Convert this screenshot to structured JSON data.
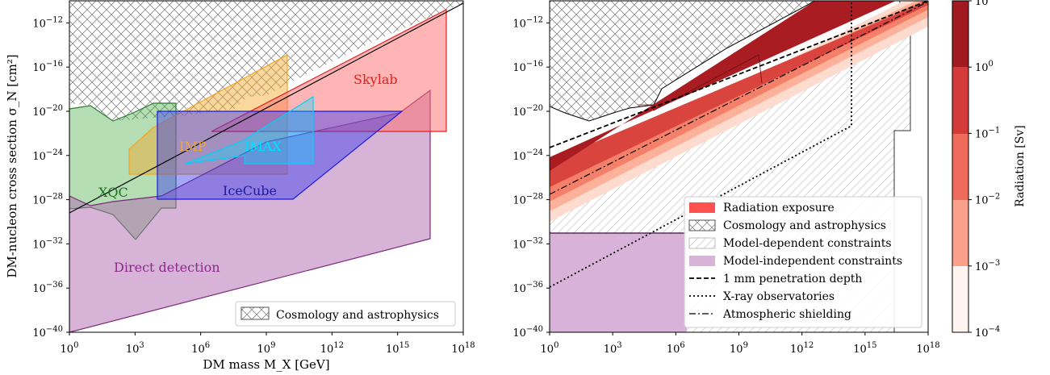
{
  "figure": {
    "ylabel": "DM-nucleon cross section σ_N [cm²]",
    "xlabel": "DM mass M_X [GeV]",
    "colorbar_label": "Radiation [Sv]"
  },
  "chart_data": [
    {
      "type": "area",
      "panel": "left",
      "xscale": "log",
      "yscale": "log",
      "xlim": [
        1,
        1e+18
      ],
      "ylim": [
        1e-40,
        1e-10
      ],
      "x_ticks": [
        "10^0",
        "10^3",
        "10^6",
        "10^9",
        "10^12",
        "10^15",
        "10^18"
      ],
      "y_ticks": [
        "10^-12",
        "10^-16",
        "10^-20",
        "10^-24",
        "10^-28",
        "10^-32",
        "10^-36",
        "10^-40"
      ],
      "xlabel": "DM mass M_X [GeV]",
      "ylabel": "DM-nucleon cross section σ_N [cm²]",
      "legend": {
        "placement": "lower-right",
        "entries": [
          "Cosmology and astrophysics"
        ]
      },
      "regions": [
        {
          "name": "Cosmology and astrophysics",
          "style": "crosshatch",
          "boundary": [
            [
              1,
              1.6e-19
            ],
            [
              10,
              4e-20
            ],
            [
              100,
              4e-21
            ],
            [
              1000,
              2.5e-21
            ],
            [
              10000.0,
              1.6e-20
            ],
            [
              100000.0,
              1e-19
            ],
            [
              1000000.0,
              4e-21
            ],
            [
              10000000.0,
              5e-19
            ],
            [
              100000000.0,
              2.5e-20
            ],
            [
              1000000000.0,
              4e-19
            ],
            [
              10000000000.0,
              6e-21
            ],
            [
              10000000000000.0,
              5e-17
            ],
            [
              1e+16,
              4e-13
            ],
            [
              1e+18,
              1e-10
            ]
          ]
        },
        {
          "name": "XQC",
          "label": "XQC",
          "color": "#2e8b2e",
          "polygon": [
            [
              1,
              1.6e-28
            ],
            [
              0.3,
              3e-21
            ],
            [
              100.0,
              5e-21
            ],
            [
              10000.0,
              1.6e-19
            ],
            [
              120000.0,
              1.6e-19
            ],
            [
              120000.0,
              2.5e-29
            ],
            [
              1000.0,
              1e-31
            ],
            [
              100.0,
              2.5e-30
            ],
            [
              10,
              4e-29
            ]
          ]
        },
        {
          "name": "IMP",
          "label": "IMP",
          "color": "#f5a623",
          "polygon": [
            [
              1000,
              1.6e-25
            ],
            [
              1000000.0,
              2e-22
            ],
            [
              4000000000.0,
              1.6e-15
            ],
            [
              4000000000.0,
              3e-24
            ],
            [
              1000000000.0,
              1e-24
            ],
            [
              100000000.0,
              1.6e-25
            ]
          ]
        },
        {
          "name": "IMAX",
          "label": "IMAX",
          "color": "#00e0ff",
          "polygon": [
            [
              300000.0,
              2.5e-24
            ],
            [
              100000000.0,
              4e-24
            ],
            [
              100000000000.0,
              5e-19
            ],
            [
              100000000000.0,
              2.5e-24
            ],
            [
              100000000.0,
              1.6e-23
            ]
          ]
        },
        {
          "name": "IceCube",
          "label": "IceCube",
          "color": "#2a2ae0",
          "polygon": [
            [
              30000.0,
              2.5e-28
            ],
            [
              30000.0,
              1e-20
            ],
            [
              1000000000000000.0,
              1e-20
            ],
            [
              1000000000.0,
              2.5e-28
            ]
          ]
        },
        {
          "name": "Skylab",
          "label": "Skylab",
          "color": "#ff6b6b",
          "polygon": [
            [
              10000000.0,
              1.6e-22
            ],
            [
              1e+17,
              6e-12
            ],
            [
              1e+17,
              1.6e-22
            ]
          ]
        },
        {
          "name": "Direct detection",
          "label": "Direct detection",
          "color": "#9b4f9b",
          "polygon": [
            [
              1,
              1e-28
            ],
            [
              10,
              6e-29
            ],
            [
              100000.0,
              1e-19
            ],
            [
              1000000000000000.0,
              4e-18
            ],
            [
              1e+16,
              1.6e-19
            ],
            [
              1e+16,
              2.5e-31
            ],
            [
              1,
              1e-40
            ]
          ]
        }
      ],
      "lines": [
        {
          "name": "1 mm penetration depth",
          "points": [
            [
              1,
              1.6e-28
            ],
            [
              1e+18,
              1e-10
            ]
          ]
        }
      ]
    },
    {
      "type": "area",
      "panel": "right",
      "xscale": "log",
      "yscale": "log",
      "xlim": [
        1,
        1e+18
      ],
      "ylim": [
        1e-40,
        1e-10
      ],
      "x_ticks": [
        "10^0",
        "10^3",
        "10^6",
        "10^9",
        "10^12",
        "10^15",
        "10^18"
      ],
      "y_ticks": [
        "10^-12",
        "10^-16",
        "10^-20",
        "10^-24",
        "10^-28",
        "10^-32",
        "10^-36",
        "10^-40"
      ],
      "legend": {
        "placement": "lower-right",
        "entries": [
          "Radiation exposure",
          "Cosmology and astrophysics",
          "Model-dependent constraints",
          "Model-independent constraints",
          "1 mm penetration depth",
          "X-ray observatories",
          "Atmospheric shielding"
        ]
      },
      "radiation_bands_sv": [
        1,
        0.1,
        0.01,
        0.001,
        0.0001
      ],
      "lines": [
        {
          "name": "1 mm penetration depth",
          "style": "dashed",
          "points": [
            [
              1,
              1.6e-24
            ],
            [
              1e+18,
              1e-10
            ]
          ]
        },
        {
          "name": "Atmospheric shielding",
          "style": "dashdot",
          "points": [
            [
              1,
              1e-28
            ],
            [
              1e+18,
              6e-11
            ]
          ]
        },
        {
          "name": "X-ray observatories",
          "style": "dotted",
          "points": [
            [
              1,
              6e-37
            ],
            [
              100000000000000.0,
              6e-22
            ],
            [
              100000000000000.0,
              1e-10
            ]
          ]
        }
      ]
    }
  ],
  "colorbar": {
    "label": "Radiation [Sv]",
    "scale": "log",
    "ticks": [
      "10^1",
      "10^0",
      "10^-1",
      "10^-2",
      "10^-3",
      "10^-4"
    ],
    "colors": [
      "#a11a1f",
      "#d53a3a",
      "#ee6a5a",
      "#fba08b",
      "#fdd0c2",
      "#fff4ef"
    ]
  }
}
